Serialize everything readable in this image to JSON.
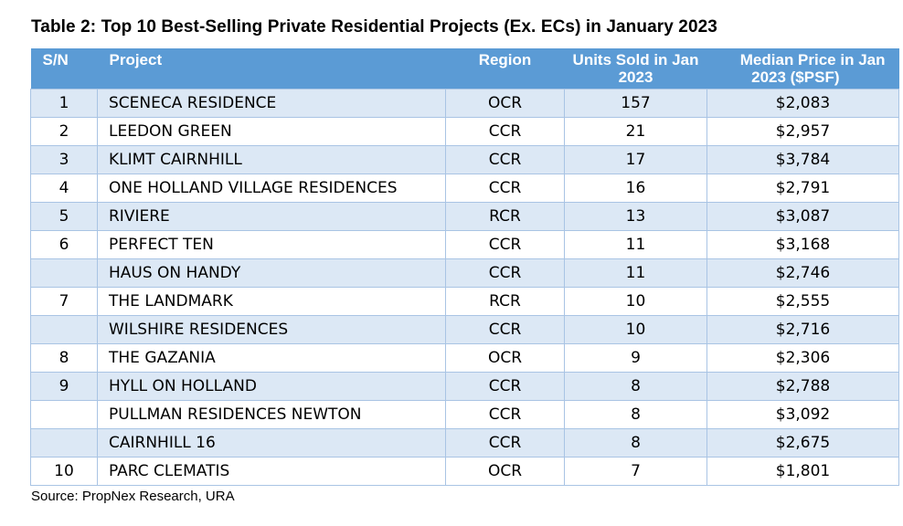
{
  "title": "Table 2: Top 10 Best-Selling Private Residential Projects (Ex. ECs) in January 2023",
  "headers": {
    "sn": "S/N",
    "project": "Project",
    "region": "Region",
    "units_line1": "Units Sold in Jan",
    "units_line2": "2023",
    "price_line1": "Median Price in Jan",
    "price_line2": "2023 ($PSF)"
  },
  "rows": [
    {
      "sn": "1",
      "project": "SCENECA RESIDENCE",
      "region": "OCR",
      "units": "157",
      "price": "$2,083"
    },
    {
      "sn": "2",
      "project": "LEEDON GREEN",
      "region": "CCR",
      "units": "21",
      "price": "$2,957"
    },
    {
      "sn": "3",
      "project": "KLIMT CAIRNHILL",
      "region": "CCR",
      "units": "17",
      "price": "$3,784"
    },
    {
      "sn": "4",
      "project": "ONE HOLLAND VILLAGE RESIDENCES",
      "region": "CCR",
      "units": "16",
      "price": "$2,791"
    },
    {
      "sn": "5",
      "project": "RIVIERE",
      "region": "RCR",
      "units": "13",
      "price": "$3,087"
    },
    {
      "sn": "6",
      "project": "PERFECT TEN",
      "region": "CCR",
      "units": "11",
      "price": "$3,168"
    },
    {
      "sn": "",
      "project": "HAUS ON HANDY",
      "region": "CCR",
      "units": "11",
      "price": "$2,746"
    },
    {
      "sn": "7",
      "project": "THE LANDMARK",
      "region": "RCR",
      "units": "10",
      "price": "$2,555"
    },
    {
      "sn": "",
      "project": "WILSHIRE RESIDENCES",
      "region": "CCR",
      "units": "10",
      "price": "$2,716"
    },
    {
      "sn": "8",
      "project": "THE GAZANIA",
      "region": "OCR",
      "units": "9",
      "price": "$2,306"
    },
    {
      "sn": "9",
      "project": "HYLL ON HOLLAND",
      "region": "CCR",
      "units": "8",
      "price": "$2,788"
    },
    {
      "sn": "",
      "project": "PULLMAN RESIDENCES NEWTON",
      "region": "CCR",
      "units": "8",
      "price": "$3,092"
    },
    {
      "sn": "",
      "project": "CAIRNHILL 16",
      "region": "CCR",
      "units": "8",
      "price": "$2,675"
    },
    {
      "sn": "10",
      "project": "PARC CLEMATIS",
      "region": "OCR",
      "units": "7",
      "price": "$1,801"
    }
  ],
  "source": "Source: PropNex Research, URA",
  "colors": {
    "header_bg": "#5b9bd5",
    "header_text": "#ffffff",
    "row_band": "#dce8f5",
    "row_plain": "#ffffff",
    "grid_line": "#a9c4e4"
  }
}
